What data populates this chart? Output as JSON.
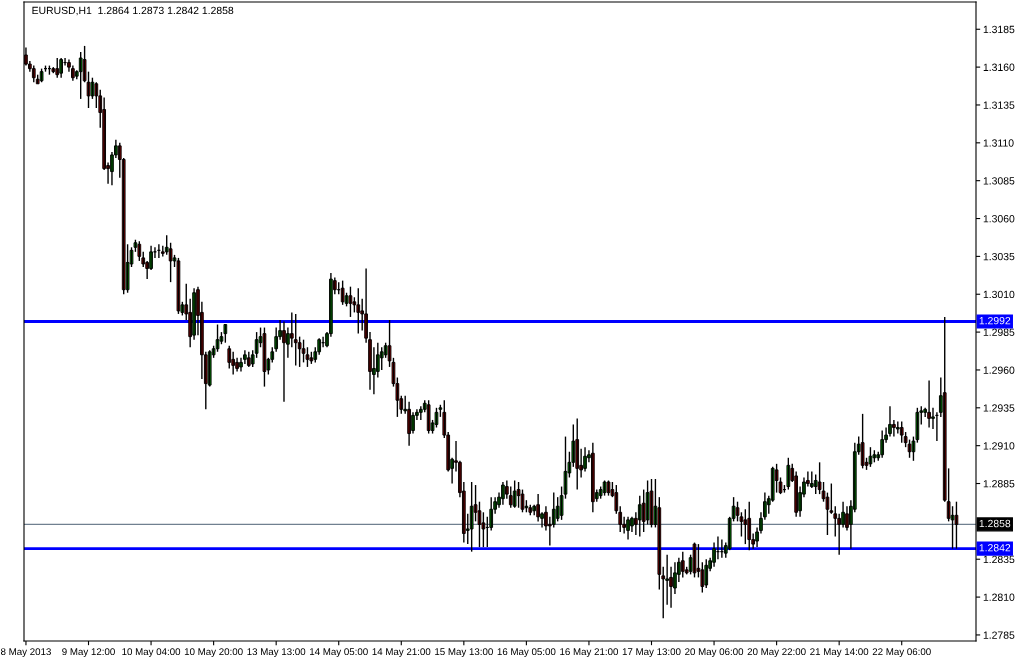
{
  "chart_data": {
    "type": "candlestick",
    "title": "EURUSD,H1  1.2864 1.2873 1.2842 1.2858",
    "categories": [
      "8 May 2013",
      null,
      null,
      null,
      null,
      null,
      null,
      null,
      null,
      null,
      null,
      null,
      null,
      null,
      null,
      null,
      "9 May 12:00",
      null,
      null,
      null,
      null,
      null,
      null,
      null,
      null,
      null,
      null,
      null,
      null,
      null,
      null,
      null,
      "10 May 04:00",
      null,
      null,
      null,
      null,
      null,
      null,
      null,
      null,
      null,
      null,
      null,
      null,
      null,
      null,
      null,
      "10 May 20:00",
      null,
      null,
      null,
      null,
      null,
      null,
      null,
      null,
      null,
      null,
      null,
      null,
      null,
      null,
      null,
      "13 May 13:00",
      null,
      null,
      null,
      null,
      null,
      null,
      null,
      null,
      null,
      null,
      null,
      null,
      null,
      null,
      null,
      "14 May 05:00",
      null,
      null,
      null,
      null,
      null,
      null,
      null,
      null,
      null,
      null,
      null,
      null,
      null,
      null,
      null,
      "14 May 21:00",
      null,
      null,
      null,
      null,
      null,
      null,
      null,
      null,
      null,
      null,
      null,
      null,
      null,
      null,
      null,
      "15 May 13:00",
      null,
      null,
      null,
      null,
      null,
      null,
      null,
      null,
      null,
      null,
      null,
      null,
      null,
      null,
      null,
      "16 May 05:00",
      null,
      null,
      null,
      null,
      null,
      null,
      null,
      null,
      null,
      null,
      null,
      null,
      null,
      null,
      null,
      "16 May 21:00",
      null,
      null,
      null,
      null,
      null,
      null,
      null,
      null,
      null,
      null,
      null,
      null,
      null,
      null,
      null,
      "17 May 13:00",
      null,
      null,
      null,
      null,
      null,
      null,
      null,
      null,
      null,
      null,
      null,
      null,
      null,
      null,
      null,
      "20 May 06:00",
      null,
      null,
      null,
      null,
      null,
      null,
      null,
      null,
      null,
      null,
      null,
      null,
      null,
      null,
      null,
      "20 May 22:00",
      null,
      null,
      null,
      null,
      null,
      null,
      null,
      null,
      null,
      null,
      null,
      null,
      null,
      null,
      null,
      "21 May 14:00",
      null,
      null,
      null,
      null,
      null,
      null,
      null,
      null,
      null,
      null,
      null,
      null,
      null,
      null,
      null,
      "22 May 06:00",
      null,
      null,
      null,
      null,
      null,
      null,
      null,
      null,
      null,
      null,
      null,
      null,
      null,
      null
    ],
    "ohlc": [
      [
        1.3168,
        1.3173,
        1.3161,
        1.3162
      ],
      [
        1.3162,
        1.3164,
        1.3157,
        1.3159
      ],
      [
        1.3159,
        1.3161,
        1.315,
        1.3153
      ],
      [
        1.3152,
        1.3155,
        1.3149,
        1.3149
      ],
      [
        1.3151,
        1.3159,
        1.315,
        1.3157
      ],
      [
        1.3159,
        1.3161,
        1.3157,
        1.3159
      ],
      [
        1.3159,
        1.3161,
        1.3155,
        1.3159
      ],
      [
        1.3159,
        1.316,
        1.3156,
        1.3157
      ],
      [
        1.3159,
        1.3166,
        1.3153,
        1.3155
      ],
      [
        1.3156,
        1.3166,
        1.3153,
        1.3165
      ],
      [
        1.3163,
        1.3166,
        1.3161,
        1.3163
      ],
      [
        1.3163,
        1.3165,
        1.3157,
        1.316
      ],
      [
        1.3159,
        1.3161,
        1.3151,
        1.3153
      ],
      [
        1.3154,
        1.3158,
        1.3152,
        1.3157
      ],
      [
        1.3157,
        1.317,
        1.3139,
        1.3166
      ],
      [
        1.3165,
        1.3174,
        1.315,
        1.3151
      ],
      [
        1.315,
        1.3157,
        1.3133,
        1.3141
      ],
      [
        1.3141,
        1.3153,
        1.3139,
        1.315
      ],
      [
        1.3149,
        1.315,
        1.3133,
        1.3141
      ],
      [
        1.3141,
        1.3145,
        1.312,
        1.313
      ],
      [
        1.3132,
        1.314,
        1.3092,
        1.3093
      ],
      [
        1.3095,
        1.3097,
        1.3083,
        1.3093
      ],
      [
        1.3091,
        1.3104,
        1.3082,
        1.3102
      ],
      [
        1.3102,
        1.3112,
        1.31,
        1.3108
      ],
      [
        1.3108,
        1.311,
        1.3087,
        1.3099
      ],
      [
        1.3099,
        1.31,
        1.301,
        1.3013
      ],
      [
        1.3013,
        1.3043,
        1.3011,
        1.3031
      ],
      [
        1.303,
        1.3041,
        1.3028,
        1.3039
      ],
      [
        1.3041,
        1.3046,
        1.3038,
        1.3044
      ],
      [
        1.3043,
        1.3045,
        1.3032,
        1.3035
      ],
      [
        1.3034,
        1.3038,
        1.3028,
        1.303
      ],
      [
        1.3031,
        1.3032,
        1.302,
        1.3027
      ],
      [
        1.3027,
        1.3042,
        1.3026,
        1.3038
      ],
      [
        1.3038,
        1.3041,
        1.3034,
        1.3038
      ],
      [
        1.3039,
        1.3043,
        1.3034,
        1.3039
      ],
      [
        1.3038,
        1.3042,
        1.3035,
        1.3037
      ],
      [
        1.3038,
        1.3049,
        1.3036,
        1.3041
      ],
      [
        1.304,
        1.3044,
        1.3018,
        1.3032
      ],
      [
        1.3032,
        1.3036,
        1.3028,
        1.3034
      ],
      [
        1.3032,
        1.3034,
        1.2997,
        1.2999
      ],
      [
        1.2998,
        1.3005,
        1.2996,
        1.3003
      ],
      [
        1.3003,
        1.3017,
        1.2993,
        1.2997
      ],
      [
        1.2998,
        1.3007,
        1.2975,
        1.2982
      ],
      [
        1.2983,
        1.3014,
        1.298,
        1.3011
      ],
      [
        1.3013,
        1.3015,
        1.2983,
        1.2996
      ],
      [
        1.2998,
        1.3005,
        1.2954,
        1.297
      ],
      [
        1.297,
        1.2972,
        1.2934,
        1.2951
      ],
      [
        1.295,
        1.2973,
        1.2949,
        1.2972
      ],
      [
        1.297,
        1.2976,
        1.2968,
        1.2974
      ],
      [
        1.2974,
        1.299,
        1.2972,
        1.298
      ],
      [
        1.2979,
        1.2985,
        1.2977,
        1.2982
      ],
      [
        1.2984,
        1.299,
        1.2978,
        1.299
      ],
      [
        1.2974,
        1.2976,
        1.2961,
        1.2965
      ],
      [
        1.2967,
        1.2972,
        1.2957,
        1.2963
      ],
      [
        1.2965,
        1.2968,
        1.2959,
        1.2961
      ],
      [
        1.2962,
        1.2968,
        1.2959,
        1.2965
      ],
      [
        1.2967,
        1.2973,
        1.2964,
        1.297
      ],
      [
        1.2968,
        1.2972,
        1.2962,
        1.2963
      ],
      [
        1.2964,
        1.2973,
        1.2962,
        1.297
      ],
      [
        1.2971,
        1.2985,
        1.2968,
        1.298
      ],
      [
        1.2978,
        1.2988,
        1.2975,
        1.2982
      ],
      [
        1.2984,
        1.2988,
        1.2949,
        1.2959
      ],
      [
        1.296,
        1.2968,
        1.2957,
        1.2967
      ],
      [
        1.2967,
        1.2975,
        1.2965,
        1.2972
      ],
      [
        1.2974,
        1.2988,
        1.2972,
        1.2982
      ],
      [
        1.2982,
        1.2993,
        1.298,
        1.2986
      ],
      [
        1.2986,
        1.2992,
        1.2939,
        1.2978
      ],
      [
        1.2977,
        1.2988,
        1.2968,
        1.2984
      ],
      [
        1.2984,
        1.2998,
        1.2975,
        1.2981
      ],
      [
        1.298,
        1.2997,
        1.2963,
        1.2978
      ],
      [
        1.2978,
        1.2982,
        1.2962,
        1.2974
      ],
      [
        1.2974,
        1.298,
        1.2965,
        1.2971
      ],
      [
        1.297,
        1.2975,
        1.2962,
        1.2967
      ],
      [
        1.2968,
        1.2972,
        1.2964,
        1.2966
      ],
      [
        1.2967,
        1.2975,
        1.2965,
        1.2972
      ],
      [
        1.2972,
        1.2981,
        1.297,
        1.298
      ],
      [
        1.2978,
        1.2982,
        1.2975,
        1.2978
      ],
      [
        1.2976,
        1.2985,
        1.2975,
        1.2984
      ],
      [
        1.2984,
        1.3024,
        1.2982,
        1.302
      ],
      [
        1.3019,
        1.3021,
        1.301,
        1.3013
      ],
      [
        1.3013,
        1.3018,
        1.301,
        1.3013
      ],
      [
        1.3014,
        1.3019,
        1.3003,
        1.3005
      ],
      [
        1.3004,
        1.3011,
        1.3002,
        1.3009
      ],
      [
        1.3009,
        1.3015,
        1.2995,
        1.3004
      ],
      [
        1.3005,
        1.3008,
        1.2998,
        1.3003
      ],
      [
        1.3003,
        1.3014,
        1.2984,
        1.2998
      ],
      [
        1.2999,
        1.3007,
        1.2986,
        1.2997
      ],
      [
        1.2997,
        1.3027,
        1.2978,
        1.2981
      ],
      [
        1.298,
        1.2985,
        1.2947,
        1.2959
      ],
      [
        1.2957,
        1.2975,
        1.2944,
        1.2961
      ],
      [
        1.2959,
        1.2978,
        1.2955,
        1.297
      ],
      [
        1.2968,
        1.2975,
        1.296,
        1.2972
      ],
      [
        1.297,
        1.2978,
        1.2968,
        1.2976
      ],
      [
        1.2976,
        1.2993,
        1.2962,
        1.2966
      ],
      [
        1.2965,
        1.2968,
        1.2949,
        1.2951
      ],
      [
        1.2951,
        1.2955,
        1.2929,
        1.294
      ],
      [
        1.2941,
        1.2943,
        1.2931,
        1.2934
      ],
      [
        1.2933,
        1.2943,
        1.2931,
        1.2934
      ],
      [
        1.2934,
        1.2939,
        1.291,
        1.2918
      ],
      [
        1.292,
        1.2932,
        1.2918,
        1.293
      ],
      [
        1.293,
        1.2934,
        1.2927,
        1.2932
      ],
      [
        1.2932,
        1.2936,
        1.2927,
        1.2934
      ],
      [
        1.2934,
        1.294,
        1.2932,
        1.2938
      ],
      [
        1.2937,
        1.294,
        1.2918,
        1.292
      ],
      [
        1.292,
        1.2927,
        1.2918,
        1.2925
      ],
      [
        1.2924,
        1.2935,
        1.2922,
        1.2932
      ],
      [
        1.2934,
        1.2937,
        1.2929,
        1.2935
      ],
      [
        1.2932,
        1.294,
        1.2915,
        1.2917
      ],
      [
        1.2917,
        1.2919,
        1.2893,
        1.2894
      ],
      [
        1.2895,
        1.2902,
        1.2885,
        1.2901
      ],
      [
        1.29,
        1.2913,
        1.2893,
        1.2899
      ],
      [
        1.2899,
        1.29,
        1.2876,
        1.2879
      ],
      [
        1.288,
        1.2886,
        1.2846,
        1.2852
      ],
      [
        1.2854,
        1.2865,
        1.2845,
        1.2855
      ],
      [
        1.2855,
        1.2886,
        1.284,
        1.287
      ],
      [
        1.2871,
        1.2884,
        1.286,
        1.2866
      ],
      [
        1.2867,
        1.2873,
        1.2843,
        1.2858
      ],
      [
        1.2859,
        1.2866,
        1.2843,
        1.2855
      ],
      [
        1.2856,
        1.2863,
        1.2843,
        1.2856
      ],
      [
        1.2856,
        1.2876,
        1.2854,
        1.2868
      ],
      [
        1.2868,
        1.2876,
        1.2865,
        1.2873
      ],
      [
        1.2871,
        1.2879,
        1.2869,
        1.2876
      ],
      [
        1.2875,
        1.2886,
        1.2871,
        1.2884
      ],
      [
        1.2883,
        1.2887,
        1.2875,
        1.2878
      ],
      [
        1.2877,
        1.2883,
        1.2869,
        1.2871
      ],
      [
        1.287,
        1.2887,
        1.2869,
        1.288
      ],
      [
        1.2881,
        1.2886,
        1.2869,
        1.2877
      ],
      [
        1.2878,
        1.2881,
        1.2866,
        1.2868
      ],
      [
        1.2869,
        1.2874,
        1.2866,
        1.287
      ],
      [
        1.2869,
        1.2871,
        1.2864,
        1.2866
      ],
      [
        1.2867,
        1.2871,
        1.2864,
        1.287
      ],
      [
        1.2871,
        1.2878,
        1.286,
        1.2863
      ],
      [
        1.2862,
        1.2866,
        1.2856,
        1.2865
      ],
      [
        1.2866,
        1.287,
        1.2854,
        1.2857
      ],
      [
        1.2858,
        1.2863,
        1.2844,
        1.2857
      ],
      [
        1.2858,
        1.2879,
        1.2856,
        1.2868
      ],
      [
        1.2862,
        1.2876,
        1.286,
        1.287
      ],
      [
        1.2864,
        1.2883,
        1.2861,
        1.2877
      ],
      [
        1.2878,
        1.2916,
        1.2875,
        1.2893
      ],
      [
        1.2892,
        1.2906,
        1.2889,
        1.2899
      ],
      [
        1.2899,
        1.2924,
        1.2896,
        1.2913
      ],
      [
        1.2914,
        1.2928,
        1.2881,
        1.2895
      ],
      [
        1.2897,
        1.2908,
        1.2889,
        1.2894
      ],
      [
        1.2895,
        1.2909,
        1.2893,
        1.2903
      ],
      [
        1.2902,
        1.2907,
        1.2899,
        1.2904
      ],
      [
        1.2905,
        1.2912,
        1.2866,
        1.2873
      ],
      [
        1.2875,
        1.2881,
        1.2873,
        1.2879
      ],
      [
        1.2877,
        1.2883,
        1.2875,
        1.2881
      ],
      [
        1.2879,
        1.2887,
        1.2877,
        1.2886
      ],
      [
        1.2886,
        1.2887,
        1.2877,
        1.2879
      ],
      [
        1.2881,
        1.2886,
        1.2876,
        1.2877
      ],
      [
        1.2879,
        1.2884,
        1.2865,
        1.2867
      ],
      [
        1.2866,
        1.287,
        1.2853,
        1.2858
      ],
      [
        1.2858,
        1.2863,
        1.2852,
        1.2856
      ],
      [
        1.2854,
        1.2863,
        1.2848,
        1.2861
      ],
      [
        1.2857,
        1.2863,
        1.2853,
        1.2862
      ],
      [
        1.2862,
        1.2866,
        1.2851,
        1.2858
      ],
      [
        1.2861,
        1.2877,
        1.285,
        1.2871
      ],
      [
        1.2872,
        1.2881,
        1.2853,
        1.286
      ],
      [
        1.2861,
        1.2887,
        1.2858,
        1.2879
      ],
      [
        1.288,
        1.2888,
        1.2856,
        1.2858
      ],
      [
        1.2858,
        1.2888,
        1.2856,
        1.287
      ],
      [
        1.2869,
        1.2876,
        1.2815,
        1.2825
      ],
      [
        1.2824,
        1.283,
        1.2796,
        1.2822
      ],
      [
        1.2821,
        1.2838,
        1.2805,
        1.2822
      ],
      [
        1.2823,
        1.283,
        1.2803,
        1.2817
      ],
      [
        1.2816,
        1.2833,
        1.2812,
        1.2826
      ],
      [
        1.2825,
        1.2836,
        1.282,
        1.2833
      ],
      [
        1.2834,
        1.284,
        1.2823,
        1.2827
      ],
      [
        1.2828,
        1.283,
        1.2825,
        1.2826
      ],
      [
        1.2827,
        1.2838,
        1.2825,
        1.2836
      ],
      [
        1.2845,
        1.2846,
        1.2823,
        1.2826
      ],
      [
        1.2829,
        1.2845,
        1.2823,
        1.2827
      ],
      [
        1.2828,
        1.2833,
        1.2813,
        1.2817
      ],
      [
        1.2818,
        1.2835,
        1.2816,
        1.2831
      ],
      [
        1.2829,
        1.2836,
        1.2827,
        1.2834
      ],
      [
        1.2833,
        1.2846,
        1.283,
        1.2842
      ],
      [
        1.284,
        1.285,
        1.2835,
        1.284
      ],
      [
        1.284,
        1.2848,
        1.2836,
        1.284
      ],
      [
        1.2839,
        1.2846,
        1.2836,
        1.2844
      ],
      [
        1.2842,
        1.2863,
        1.2841,
        1.2862
      ],
      [
        1.2862,
        1.2876,
        1.286,
        1.287
      ],
      [
        1.2869,
        1.2873,
        1.286,
        1.2864
      ],
      [
        1.2863,
        1.2866,
        1.285,
        1.286
      ],
      [
        1.2861,
        1.2868,
        1.2845,
        1.2858
      ],
      [
        1.2862,
        1.2873,
        1.2841,
        1.2848
      ],
      [
        1.2848,
        1.2852,
        1.2842,
        1.2845
      ],
      [
        1.2847,
        1.2856,
        1.2843,
        1.2853
      ],
      [
        1.2854,
        1.2866,
        1.2852,
        1.2862
      ],
      [
        1.2863,
        1.2879,
        1.2861,
        1.2873
      ],
      [
        1.2871,
        1.2877,
        1.2865,
        1.2875
      ],
      [
        1.2874,
        1.2896,
        1.2873,
        1.2895
      ],
      [
        1.2894,
        1.2898,
        1.2879,
        1.2887
      ],
      [
        1.2886,
        1.2889,
        1.2878,
        1.2879
      ],
      [
        1.2881,
        1.2884,
        1.2879,
        1.2881
      ],
      [
        1.2883,
        1.2902,
        1.2881,
        1.2897
      ],
      [
        1.2895,
        1.2898,
        1.2886,
        1.2887
      ],
      [
        1.289,
        1.2893,
        1.2863,
        1.2866
      ],
      [
        1.2867,
        1.2883,
        1.2863,
        1.2879
      ],
      [
        1.2878,
        1.2889,
        1.2876,
        1.2886
      ],
      [
        1.2887,
        1.2893,
        1.2883,
        1.2885
      ],
      [
        1.2883,
        1.2893,
        1.2882,
        1.2885
      ],
      [
        1.2883,
        1.2891,
        1.2878,
        1.2887
      ],
      [
        1.2886,
        1.2899,
        1.2878,
        1.2881
      ],
      [
        1.288,
        1.2886,
        1.2873,
        1.2875
      ],
      [
        1.2876,
        1.2879,
        1.2851,
        1.2868
      ],
      [
        1.2867,
        1.2885,
        1.2865,
        1.2866
      ],
      [
        1.2865,
        1.287,
        1.285,
        1.2862
      ],
      [
        1.2862,
        1.2865,
        1.2838,
        1.2858
      ],
      [
        1.2858,
        1.2873,
        1.2856,
        1.2866
      ],
      [
        1.2865,
        1.287,
        1.2854,
        1.2856
      ],
      [
        1.2858,
        1.2874,
        1.2842,
        1.287
      ],
      [
        1.2868,
        1.2912,
        1.2866,
        1.2906
      ],
      [
        1.2906,
        1.2916,
        1.2904,
        1.2911
      ],
      [
        1.2912,
        1.2931,
        1.2895,
        1.2897
      ],
      [
        1.2899,
        1.2902,
        1.2894,
        1.2897
      ],
      [
        1.2898,
        1.2909,
        1.2896,
        1.2903
      ],
      [
        1.2902,
        1.2907,
        1.2899,
        1.2904
      ],
      [
        1.2902,
        1.2906,
        1.29,
        1.2904
      ],
      [
        1.2904,
        1.292,
        1.2902,
        1.2914
      ],
      [
        1.2914,
        1.2922,
        1.2912,
        1.2917
      ],
      [
        1.2918,
        1.2936,
        1.2916,
        1.2924
      ],
      [
        1.2924,
        1.2927,
        1.2916,
        1.2922
      ],
      [
        1.2921,
        1.2926,
        1.2918,
        1.2922
      ],
      [
        1.2922,
        1.2926,
        1.2912,
        1.2917
      ],
      [
        1.2916,
        1.2919,
        1.2909,
        1.2912
      ],
      [
        1.2911,
        1.2914,
        1.2902,
        1.2906
      ],
      [
        1.2906,
        1.2916,
        1.29,
        1.2913
      ],
      [
        1.2914,
        1.2935,
        1.2912,
        1.2932
      ],
      [
        1.2932,
        1.2936,
        1.2924,
        1.2933
      ],
      [
        1.2932,
        1.2935,
        1.2929,
        1.2934
      ],
      [
        1.2932,
        1.2953,
        1.2922,
        1.2928
      ],
      [
        1.2928,
        1.2935,
        1.2921,
        1.2929
      ],
      [
        1.293,
        1.2932,
        1.2913,
        1.293
      ],
      [
        1.2932,
        1.2955,
        1.2929,
        1.2943
      ],
      [
        1.2945,
        1.2995,
        1.2873,
        1.2874
      ],
      [
        1.2873,
        1.2895,
        1.286,
        1.2862
      ],
      [
        1.2861,
        1.287,
        1.2842,
        1.2864
      ],
      [
        1.2864,
        1.2873,
        1.2842,
        1.2858
      ]
    ],
    "ylim": [
      1.2781,
      1.3203
    ],
    "yticks": [
      1.3185,
      {
        "value": 1.316,
        "label": "1.3160"
      },
      1.3135,
      {
        "value": 1.311,
        "label": "1.3110"
      },
      1.3085,
      {
        "value": 1.306,
        "label": "1.3060"
      },
      1.3035,
      {
        "value": 1.301,
        "label": "1.3010"
      },
      1.2985,
      {
        "value": 1.296,
        "label": "1.2960"
      },
      1.2935,
      {
        "value": 1.291,
        "label": "1.2910"
      },
      1.2885,
      1.2835,
      {
        "value": 1.281,
        "label": "1.2810"
      },
      1.2785
    ],
    "ref_lines": [
      {
        "axis": "y",
        "value": 1.2992,
        "label": "1.2992",
        "color": "#0000ff"
      },
      {
        "axis": "y",
        "value": 1.2842,
        "label": "1.2842",
        "color": "#0000ff"
      },
      {
        "axis": "y",
        "value": 1.2858,
        "label": "1.2858",
        "color": "#708090"
      }
    ]
  }
}
